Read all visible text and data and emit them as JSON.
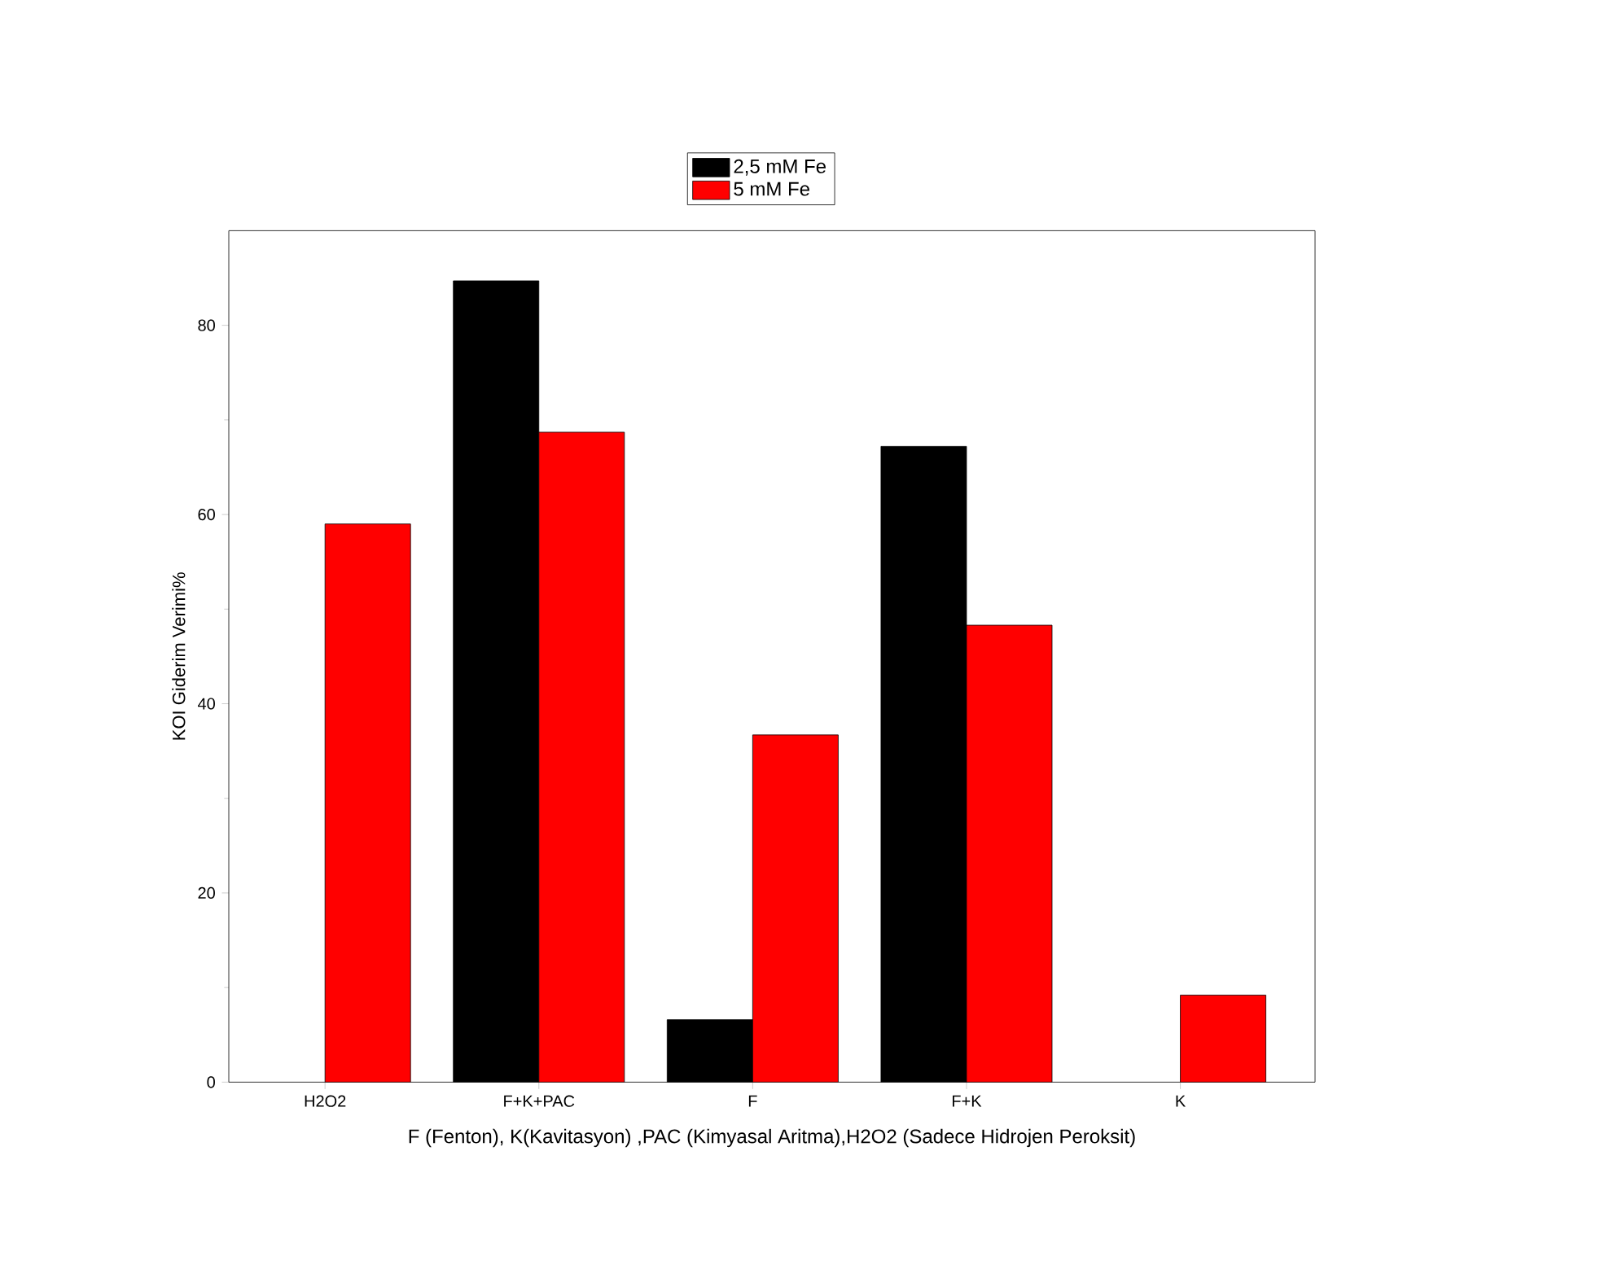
{
  "chart_data": {
    "type": "bar",
    "xlabel": "F (Fenton), K(Kavitasyon) ,PAC (Kimyasal Aritma),H2O2 (Sadece Hidrojen Peroksit)",
    "ylabel": "KOI Giderim Verimi%",
    "categories": [
      "H2O2",
      "F+K+PAC",
      "F",
      "F+K",
      "K"
    ],
    "series": [
      {
        "name": "2,5 mM Fe",
        "color": "#000000",
        "values": [
          null,
          84.7,
          6.6,
          67.2,
          null
        ]
      },
      {
        "name": "5 mM Fe",
        "color": "#ff0000",
        "values": [
          59.0,
          68.7,
          36.7,
          48.3,
          9.2
        ]
      }
    ],
    "ylim": [
      0,
      90
    ],
    "yticks": [
      0,
      20,
      40,
      60,
      80
    ],
    "legend": "top"
  }
}
